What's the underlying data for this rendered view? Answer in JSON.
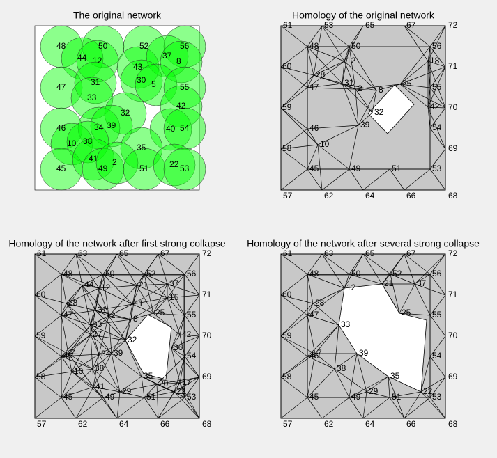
{
  "panels": [
    {
      "title": "The original network",
      "nodes": [
        "48",
        "50",
        "52",
        "56",
        "44",
        "12",
        "43",
        "37",
        "8",
        "47",
        "31",
        "30",
        "5",
        "55",
        "33",
        "32",
        "42",
        "46",
        "34",
        "39",
        "40",
        "54",
        "10",
        "38",
        "35",
        "45",
        "41",
        "49",
        "2",
        "51",
        "22",
        "53"
      ]
    },
    {
      "title": "Homology of the original network",
      "nodes": [
        "61",
        "53",
        "65",
        "67",
        "72",
        "60",
        "71",
        "59",
        "70",
        "58",
        "69",
        "57",
        "62",
        "64",
        "66",
        "68",
        "48",
        "50",
        "56",
        "47",
        "55",
        "42",
        "32",
        "25",
        "54",
        "46",
        "45",
        "49",
        "51",
        "53",
        "28",
        "31",
        "12",
        "2",
        "39",
        "10",
        "18",
        "8"
      ]
    },
    {
      "title": "Homology of the network after first strong collapse",
      "nodes": [
        "61",
        "63",
        "65",
        "67",
        "72",
        "60",
        "71",
        "59",
        "70",
        "58",
        "69",
        "57",
        "62",
        "64",
        "66",
        "68",
        "48",
        "50",
        "52",
        "56",
        "44",
        "12",
        "21",
        "37",
        "15",
        "11",
        "28",
        "47",
        "31",
        "2",
        "8",
        "25",
        "55",
        "33",
        "27",
        "32",
        "42",
        "46",
        "7",
        "34",
        "39",
        "36",
        "54",
        "10",
        "38",
        "35",
        "20",
        "17",
        "41",
        "29",
        "22",
        "45",
        "49",
        "51",
        "53"
      ]
    },
    {
      "title": "Homology of the network after several strong collapse",
      "nodes": [
        "61",
        "63",
        "65",
        "67",
        "72",
        "60",
        "71",
        "59",
        "70",
        "58",
        "69",
        "57",
        "62",
        "64",
        "66",
        "68",
        "48",
        "50",
        "52",
        "56",
        "12",
        "21",
        "37",
        "28",
        "47",
        "33",
        "25",
        "55",
        "46",
        "7",
        "39",
        "54",
        "38",
        "35",
        "29",
        "22",
        "45",
        "49",
        "51",
        "53"
      ]
    }
  ]
}
